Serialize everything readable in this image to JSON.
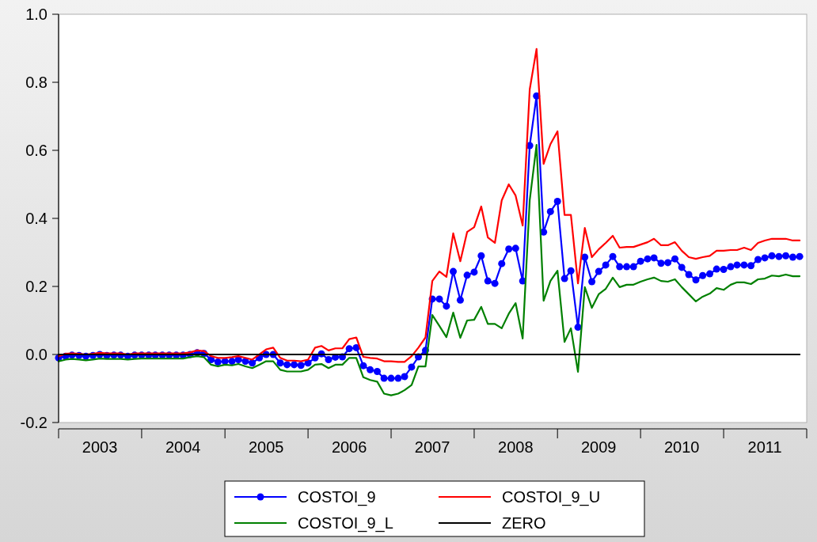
{
  "chart_data": {
    "type": "line",
    "ylim": [
      -0.2,
      1.0
    ],
    "yticks": [
      -0.2,
      {
        "value": 0,
        "label": "0.0"
      },
      0.2,
      0.4,
      0.6,
      0.8,
      {
        "value": 1,
        "label": "1.0"
      }
    ],
    "xlim": [
      "2003-01",
      "2012-01"
    ],
    "xticks": [
      {
        "value": "2003-01",
        "label": null
      },
      {
        "value": "2003-07",
        "label": "2003"
      },
      {
        "value": "2004-01",
        "label": null
      },
      {
        "value": "2004-07",
        "label": "2004"
      },
      {
        "value": "2005-01",
        "label": null
      },
      {
        "value": "2005-07",
        "label": "2005"
      },
      {
        "value": "2006-01",
        "label": null
      },
      {
        "value": "2006-07",
        "label": "2006"
      },
      {
        "value": "2007-01",
        "label": null
      },
      {
        "value": "2007-07",
        "label": "2007"
      },
      {
        "value": "2008-01",
        "label": null
      },
      {
        "value": "2008-07",
        "label": "2008"
      },
      {
        "value": "2009-01",
        "label": null
      },
      {
        "value": "2009-07",
        "label": "2009"
      },
      {
        "value": "2010-01",
        "label": null
      },
      {
        "value": "2010-07",
        "label": "2010"
      },
      {
        "value": "2011-01",
        "label": null
      },
      {
        "value": "2011-07",
        "label": "2011"
      },
      {
        "value": "2012-01",
        "label": null
      }
    ],
    "x": [
      "2003-01",
      "2003-02",
      "2003-03",
      "2003-04",
      "2003-05",
      "2003-06",
      "2003-07",
      "2003-08",
      "2003-09",
      "2003-10",
      "2003-11",
      "2003-12",
      "2004-01",
      "2004-02",
      "2004-03",
      "2004-04",
      "2004-05",
      "2004-06",
      "2004-07",
      "2004-08",
      "2004-09",
      "2004-10",
      "2004-11",
      "2004-12",
      "2005-01",
      "2005-02",
      "2005-03",
      "2005-04",
      "2005-05",
      "2005-06",
      "2005-07",
      "2005-08",
      "2005-09",
      "2005-10",
      "2005-11",
      "2005-12",
      "2006-01",
      "2006-02",
      "2006-03",
      "2006-04",
      "2006-05",
      "2006-06",
      "2006-07",
      "2006-08",
      "2006-09",
      "2006-10",
      "2006-11",
      "2006-12",
      "2007-01",
      "2007-02",
      "2007-03",
      "2007-04",
      "2007-05",
      "2007-06",
      "2007-07",
      "2007-08",
      "2007-09",
      "2007-10",
      "2007-11",
      "2007-12",
      "2008-01",
      "2008-02",
      "2008-03",
      "2008-04",
      "2008-05",
      "2008-06",
      "2008-07",
      "2008-08",
      "2008-09",
      "2008-10",
      "2008-11",
      "2008-12",
      "2009-01",
      "2009-02",
      "2009-03",
      "2009-04",
      "2009-05",
      "2009-06",
      "2009-07",
      "2009-08",
      "2009-09",
      "2009-10",
      "2009-11",
      "2009-12",
      "2010-01",
      "2010-02",
      "2010-03",
      "2010-04",
      "2010-05",
      "2010-06",
      "2010-07",
      "2010-08",
      "2010-09",
      "2010-10",
      "2010-11",
      "2010-12",
      "2011-01",
      "2011-02",
      "2011-03",
      "2011-04",
      "2011-05",
      "2011-06",
      "2011-07",
      "2011-08",
      "2011-09",
      "2011-10",
      "2011-11",
      "2011-12"
    ],
    "legend": "bottom",
    "series": [
      {
        "name": "COSTOI_9",
        "color": "#0000ff",
        "marker": "circle",
        "values": [
          -0.01,
          -0.005,
          -0.002,
          -0.003,
          -0.005,
          -0.003,
          0,
          -0.003,
          -0.002,
          -0.002,
          -0.005,
          -0.002,
          -0.002,
          -0.002,
          -0.002,
          -0.002,
          -0.002,
          -0.002,
          -0.002,
          0,
          0.005,
          0.003,
          -0.015,
          -0.022,
          -0.02,
          -0.02,
          -0.015,
          -0.02,
          -0.025,
          -0.01,
          0,
          0,
          -0.025,
          -0.03,
          -0.03,
          -0.032,
          -0.025,
          -0.01,
          0.002,
          -0.015,
          -0.008,
          -0.007,
          0.017,
          0.02,
          -0.033,
          -0.045,
          -0.05,
          -0.07,
          -0.07,
          -0.07,
          -0.065,
          -0.037,
          -0.007,
          0.012,
          0.163,
          0.163,
          0.142,
          0.244,
          0.16,
          0.233,
          0.242,
          0.29,
          0.216,
          0.209,
          0.267,
          0.31,
          0.312,
          0.216,
          0.614,
          0.76,
          0.36,
          0.42,
          0.45,
          0.223,
          0.246,
          0.08,
          0.286,
          0.214,
          0.244,
          0.263,
          0.288,
          0.258,
          0.258,
          0.258,
          0.274,
          0.281,
          0.284,
          0.268,
          0.27,
          0.281,
          0.256,
          0.235,
          0.219,
          0.232,
          0.237,
          0.251,
          0.25,
          0.258,
          0.263,
          0.263,
          0.261,
          0.279,
          0.284,
          0.29,
          0.288,
          0.29,
          0.286,
          0.288
        ]
      },
      {
        "name": "COSTOI_9_U",
        "color": "#ff0000",
        "values": [
          -0.005,
          0.002,
          0.003,
          0.002,
          0,
          0.002,
          0.005,
          0.003,
          0.003,
          0.003,
          0,
          0.003,
          0.003,
          0.003,
          0.003,
          0.003,
          0.003,
          0.003,
          0.003,
          0.006,
          0.012,
          0.01,
          -0.005,
          -0.01,
          -0.01,
          -0.008,
          -0.005,
          -0.01,
          -0.015,
          0,
          0.015,
          0.02,
          -0.01,
          -0.018,
          -0.018,
          -0.02,
          -0.015,
          0.02,
          0.025,
          0.012,
          0.018,
          0.018,
          0.045,
          0.05,
          -0.007,
          -0.01,
          -0.012,
          -0.02,
          -0.02,
          -0.022,
          -0.022,
          -0.005,
          0.02,
          0.05,
          0.216,
          0.244,
          0.228,
          0.356,
          0.274,
          0.36,
          0.374,
          0.435,
          0.344,
          0.328,
          0.453,
          0.5,
          0.467,
          0.379,
          0.779,
          0.898,
          0.56,
          0.618,
          0.656,
          0.41,
          0.41,
          0.209,
          0.372,
          0.286,
          0.309,
          0.328,
          0.349,
          0.314,
          0.316,
          0.316,
          0.323,
          0.33,
          0.34,
          0.321,
          0.321,
          0.33,
          0.305,
          0.286,
          0.281,
          0.286,
          0.29,
          0.305,
          0.305,
          0.307,
          0.307,
          0.314,
          0.307,
          0.328,
          0.335,
          0.34,
          0.34,
          0.34,
          0.335,
          0.335
        ]
      },
      {
        "name": "COSTOI_9_L",
        "color": "#008000",
        "values": [
          -0.02,
          -0.015,
          -0.013,
          -0.015,
          -0.017,
          -0.015,
          -0.012,
          -0.013,
          -0.013,
          -0.013,
          -0.015,
          -0.013,
          -0.012,
          -0.012,
          -0.012,
          -0.012,
          -0.012,
          -0.012,
          -0.012,
          -0.008,
          -0.005,
          -0.008,
          -0.03,
          -0.035,
          -0.03,
          -0.032,
          -0.028,
          -0.035,
          -0.04,
          -0.03,
          -0.02,
          -0.02,
          -0.045,
          -0.05,
          -0.05,
          -0.05,
          -0.045,
          -0.03,
          -0.028,
          -0.04,
          -0.03,
          -0.03,
          -0.01,
          -0.01,
          -0.067,
          -0.075,
          -0.08,
          -0.115,
          -0.12,
          -0.115,
          -0.105,
          -0.09,
          -0.035,
          -0.035,
          0.116,
          0.084,
          0.051,
          0.123,
          0.049,
          0.1,
          0.102,
          0.14,
          0.09,
          0.09,
          0.077,
          0.12,
          0.151,
          0.047,
          0.453,
          0.616,
          0.158,
          0.216,
          0.246,
          0.037,
          0.077,
          -0.051,
          0.198,
          0.137,
          0.177,
          0.193,
          0.226,
          0.198,
          0.205,
          0.205,
          0.214,
          0.221,
          0.226,
          0.216,
          0.214,
          0.221,
          0.198,
          0.177,
          0.156,
          0.17,
          0.179,
          0.195,
          0.19,
          0.205,
          0.212,
          0.212,
          0.207,
          0.221,
          0.223,
          0.232,
          0.23,
          0.235,
          0.23,
          0.23
        ]
      },
      {
        "name": "ZERO",
        "color": "#000000",
        "x": [
          "2003-01",
          "2011-12"
        ],
        "values": [
          0,
          0
        ]
      }
    ]
  }
}
